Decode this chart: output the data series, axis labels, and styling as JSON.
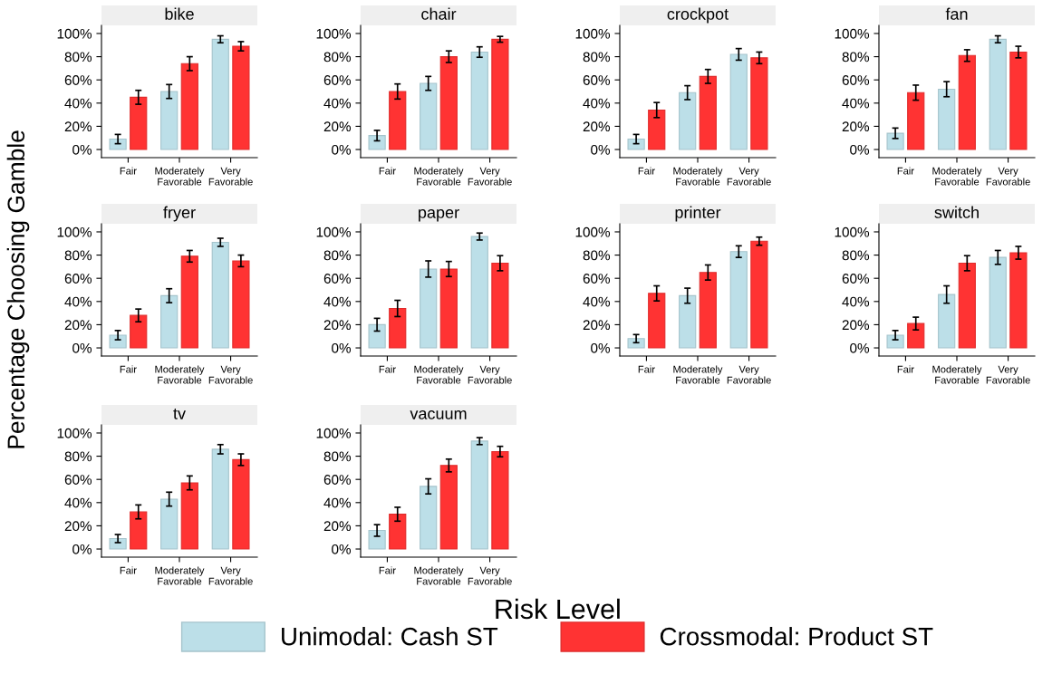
{
  "chart_data": [
    {
      "type": "bar",
      "title": "bike",
      "categories": [
        "Fair",
        "Moderately\nFavorable",
        "Very\nFavorable"
      ],
      "ylabel": "Percentage Choosing Gamble",
      "legend": "bottom",
      "grid": false,
      "ylim": [
        -7,
        107
      ],
      "yticks": [
        {
          "value": 0,
          "label": "0%"
        },
        {
          "value": 20,
          "label": "20%"
        },
        {
          "value": 40,
          "label": "40%"
        },
        {
          "value": 60,
          "label": "60%"
        },
        {
          "value": 80,
          "label": "80%"
        },
        {
          "value": 100,
          "label": "100%"
        }
      ],
      "series": [
        {
          "name": "Unimodal: Cash ST",
          "color": "#bcdfe8",
          "values": [
            9,
            50,
            95
          ],
          "errors": [
            4,
            6,
            3
          ]
        },
        {
          "name": "Crossmodal: Product ST",
          "color": "#ff3333",
          "values": [
            45,
            74,
            89
          ],
          "errors": [
            6,
            6,
            4
          ]
        }
      ]
    },
    {
      "type": "bar",
      "title": "chair",
      "categories": [
        "Fair",
        "Moderately\nFavorable",
        "Very\nFavorable"
      ],
      "grid": false,
      "ylim": [
        -7,
        107
      ],
      "yticks": [
        {
          "value": 0,
          "label": "0%"
        },
        {
          "value": 20,
          "label": "20%"
        },
        {
          "value": 40,
          "label": "40%"
        },
        {
          "value": 60,
          "label": "60%"
        },
        {
          "value": 80,
          "label": "80%"
        },
        {
          "value": 100,
          "label": "100%"
        }
      ],
      "series": [
        {
          "name": "Unimodal: Cash ST",
          "color": "#bcdfe8",
          "values": [
            12,
            57,
            84
          ],
          "errors": [
            4.5,
            6,
            4.5
          ]
        },
        {
          "name": "Crossmodal: Product ST",
          "color": "#ff3333",
          "values": [
            50,
            80,
            95
          ],
          "errors": [
            6.5,
            5,
            2.5
          ]
        }
      ]
    },
    {
      "type": "bar",
      "title": "crockpot",
      "categories": [
        "Fair",
        "Moderately\nFavorable",
        "Very\nFavorable"
      ],
      "grid": false,
      "ylim": [
        -7,
        107
      ],
      "yticks": [
        {
          "value": 0,
          "label": "0%"
        },
        {
          "value": 20,
          "label": "20%"
        },
        {
          "value": 40,
          "label": "40%"
        },
        {
          "value": 60,
          "label": "60%"
        },
        {
          "value": 80,
          "label": "80%"
        },
        {
          "value": 100,
          "label": "100%"
        }
      ],
      "series": [
        {
          "name": "Unimodal: Cash ST",
          "color": "#bcdfe8",
          "values": [
            9,
            49,
            82
          ],
          "errors": [
            4,
            6,
            5
          ]
        },
        {
          "name": "Crossmodal: Product ST",
          "color": "#ff3333",
          "values": [
            34,
            63,
            79
          ],
          "errors": [
            6.5,
            6,
            5
          ]
        }
      ]
    },
    {
      "type": "bar",
      "title": "fan",
      "categories": [
        "Fair",
        "Moderately\nFavorable",
        "Very\nFavorable"
      ],
      "grid": false,
      "ylim": [
        -7,
        107
      ],
      "yticks": [
        {
          "value": 0,
          "label": "0%"
        },
        {
          "value": 20,
          "label": "20%"
        },
        {
          "value": 40,
          "label": "40%"
        },
        {
          "value": 60,
          "label": "60%"
        },
        {
          "value": 80,
          "label": "80%"
        },
        {
          "value": 100,
          "label": "100%"
        }
      ],
      "series": [
        {
          "name": "Unimodal: Cash ST",
          "color": "#bcdfe8",
          "values": [
            14,
            52,
            95
          ],
          "errors": [
            4.5,
            6.5,
            3
          ]
        },
        {
          "name": "Crossmodal: Product ST",
          "color": "#ff3333",
          "values": [
            49,
            81,
            84
          ],
          "errors": [
            6.5,
            5,
            5
          ]
        }
      ]
    },
    {
      "type": "bar",
      "title": "fryer",
      "categories": [
        "Fair",
        "Moderately\nFavorable",
        "Very\nFavorable"
      ],
      "grid": false,
      "ylim": [
        -7,
        107
      ],
      "yticks": [
        {
          "value": 0,
          "label": "0%"
        },
        {
          "value": 20,
          "label": "20%"
        },
        {
          "value": 40,
          "label": "40%"
        },
        {
          "value": 60,
          "label": "60%"
        },
        {
          "value": 80,
          "label": "80%"
        },
        {
          "value": 100,
          "label": "100%"
        }
      ],
      "series": [
        {
          "name": "Unimodal: Cash ST",
          "color": "#bcdfe8",
          "values": [
            11,
            45,
            91
          ],
          "errors": [
            4,
            6,
            3.5
          ]
        },
        {
          "name": "Crossmodal: Product ST",
          "color": "#ff3333",
          "values": [
            28,
            79,
            75
          ],
          "errors": [
            5.5,
            5,
            5
          ]
        }
      ]
    },
    {
      "type": "bar",
      "title": "paper",
      "categories": [
        "Fair",
        "Moderately\nFavorable",
        "Very\nFavorable"
      ],
      "grid": false,
      "ylim": [
        -7,
        107
      ],
      "yticks": [
        {
          "value": 0,
          "label": "0%"
        },
        {
          "value": 20,
          "label": "20%"
        },
        {
          "value": 40,
          "label": "40%"
        },
        {
          "value": 60,
          "label": "60%"
        },
        {
          "value": 80,
          "label": "80%"
        },
        {
          "value": 100,
          "label": "100%"
        }
      ],
      "series": [
        {
          "name": "Unimodal: Cash ST",
          "color": "#bcdfe8",
          "values": [
            20,
            68,
            96
          ],
          "errors": [
            5.5,
            7,
            3
          ]
        },
        {
          "name": "Crossmodal: Product ST",
          "color": "#ff3333",
          "values": [
            34,
            68,
            73
          ],
          "errors": [
            7,
            6.5,
            6.5
          ]
        }
      ]
    },
    {
      "type": "bar",
      "title": "printer",
      "categories": [
        "Fair",
        "Moderately\nFavorable",
        "Very\nFavorable"
      ],
      "grid": false,
      "ylim": [
        -7,
        107
      ],
      "yticks": [
        {
          "value": 0,
          "label": "0%"
        },
        {
          "value": 20,
          "label": "20%"
        },
        {
          "value": 40,
          "label": "40%"
        },
        {
          "value": 60,
          "label": "60%"
        },
        {
          "value": 80,
          "label": "80%"
        },
        {
          "value": 100,
          "label": "100%"
        }
      ],
      "series": [
        {
          "name": "Unimodal: Cash ST",
          "color": "#bcdfe8",
          "values": [
            8,
            45,
            83
          ],
          "errors": [
            3.5,
            6.5,
            5
          ]
        },
        {
          "name": "Crossmodal: Product ST",
          "color": "#ff3333",
          "values": [
            47,
            65,
            92
          ],
          "errors": [
            6.5,
            6.5,
            3.5
          ]
        }
      ]
    },
    {
      "type": "bar",
      "title": "switch",
      "categories": [
        "Fair",
        "Moderately\nFavorable",
        "Very\nFavorable"
      ],
      "grid": false,
      "ylim": [
        -7,
        107
      ],
      "yticks": [
        {
          "value": 0,
          "label": "0%"
        },
        {
          "value": 20,
          "label": "20%"
        },
        {
          "value": 40,
          "label": "40%"
        },
        {
          "value": 60,
          "label": "60%"
        },
        {
          "value": 80,
          "label": "80%"
        },
        {
          "value": 100,
          "label": "100%"
        }
      ],
      "series": [
        {
          "name": "Unimodal: Cash ST",
          "color": "#bcdfe8",
          "values": [
            11,
            46,
            78
          ],
          "errors": [
            4,
            7.5,
            6
          ]
        },
        {
          "name": "Crossmodal: Product ST",
          "color": "#ff3333",
          "values": [
            21,
            73,
            82
          ],
          "errors": [
            5.5,
            6.5,
            5.5
          ]
        }
      ]
    },
    {
      "type": "bar",
      "title": "tv",
      "categories": [
        "Fair",
        "Moderately\nFavorable",
        "Very\nFavorable"
      ],
      "grid": false,
      "ylim": [
        -7,
        107
      ],
      "yticks": [
        {
          "value": 0,
          "label": "0%"
        },
        {
          "value": 20,
          "label": "20%"
        },
        {
          "value": 40,
          "label": "40%"
        },
        {
          "value": 60,
          "label": "60%"
        },
        {
          "value": 80,
          "label": "80%"
        },
        {
          "value": 100,
          "label": "100%"
        }
      ],
      "series": [
        {
          "name": "Unimodal: Cash ST",
          "color": "#bcdfe8",
          "values": [
            9,
            43,
            86
          ],
          "errors": [
            3.5,
            6,
            4
          ]
        },
        {
          "name": "Crossmodal: Product ST",
          "color": "#ff3333",
          "values": [
            32,
            57,
            77
          ],
          "errors": [
            6,
            6,
            5
          ]
        }
      ]
    },
    {
      "type": "bar",
      "title": "vacuum",
      "xlabel": "Risk Level",
      "categories": [
        "Fair",
        "Moderately\nFavorable",
        "Very\nFavorable"
      ],
      "grid": false,
      "ylim": [
        -7,
        107
      ],
      "yticks": [
        {
          "value": 0,
          "label": "0%"
        },
        {
          "value": 20,
          "label": "20%"
        },
        {
          "value": 40,
          "label": "40%"
        },
        {
          "value": 60,
          "label": "60%"
        },
        {
          "value": 80,
          "label": "80%"
        },
        {
          "value": 100,
          "label": "100%"
        }
      ],
      "series": [
        {
          "name": "Unimodal: Cash ST",
          "color": "#bcdfe8",
          "values": [
            16,
            54,
            93
          ],
          "errors": [
            5,
            6.5,
            3
          ]
        },
        {
          "name": "Crossmodal: Product ST",
          "color": "#ff3333",
          "values": [
            30,
            72,
            84
          ],
          "errors": [
            6,
            5.5,
            4.5
          ]
        }
      ]
    }
  ]
}
